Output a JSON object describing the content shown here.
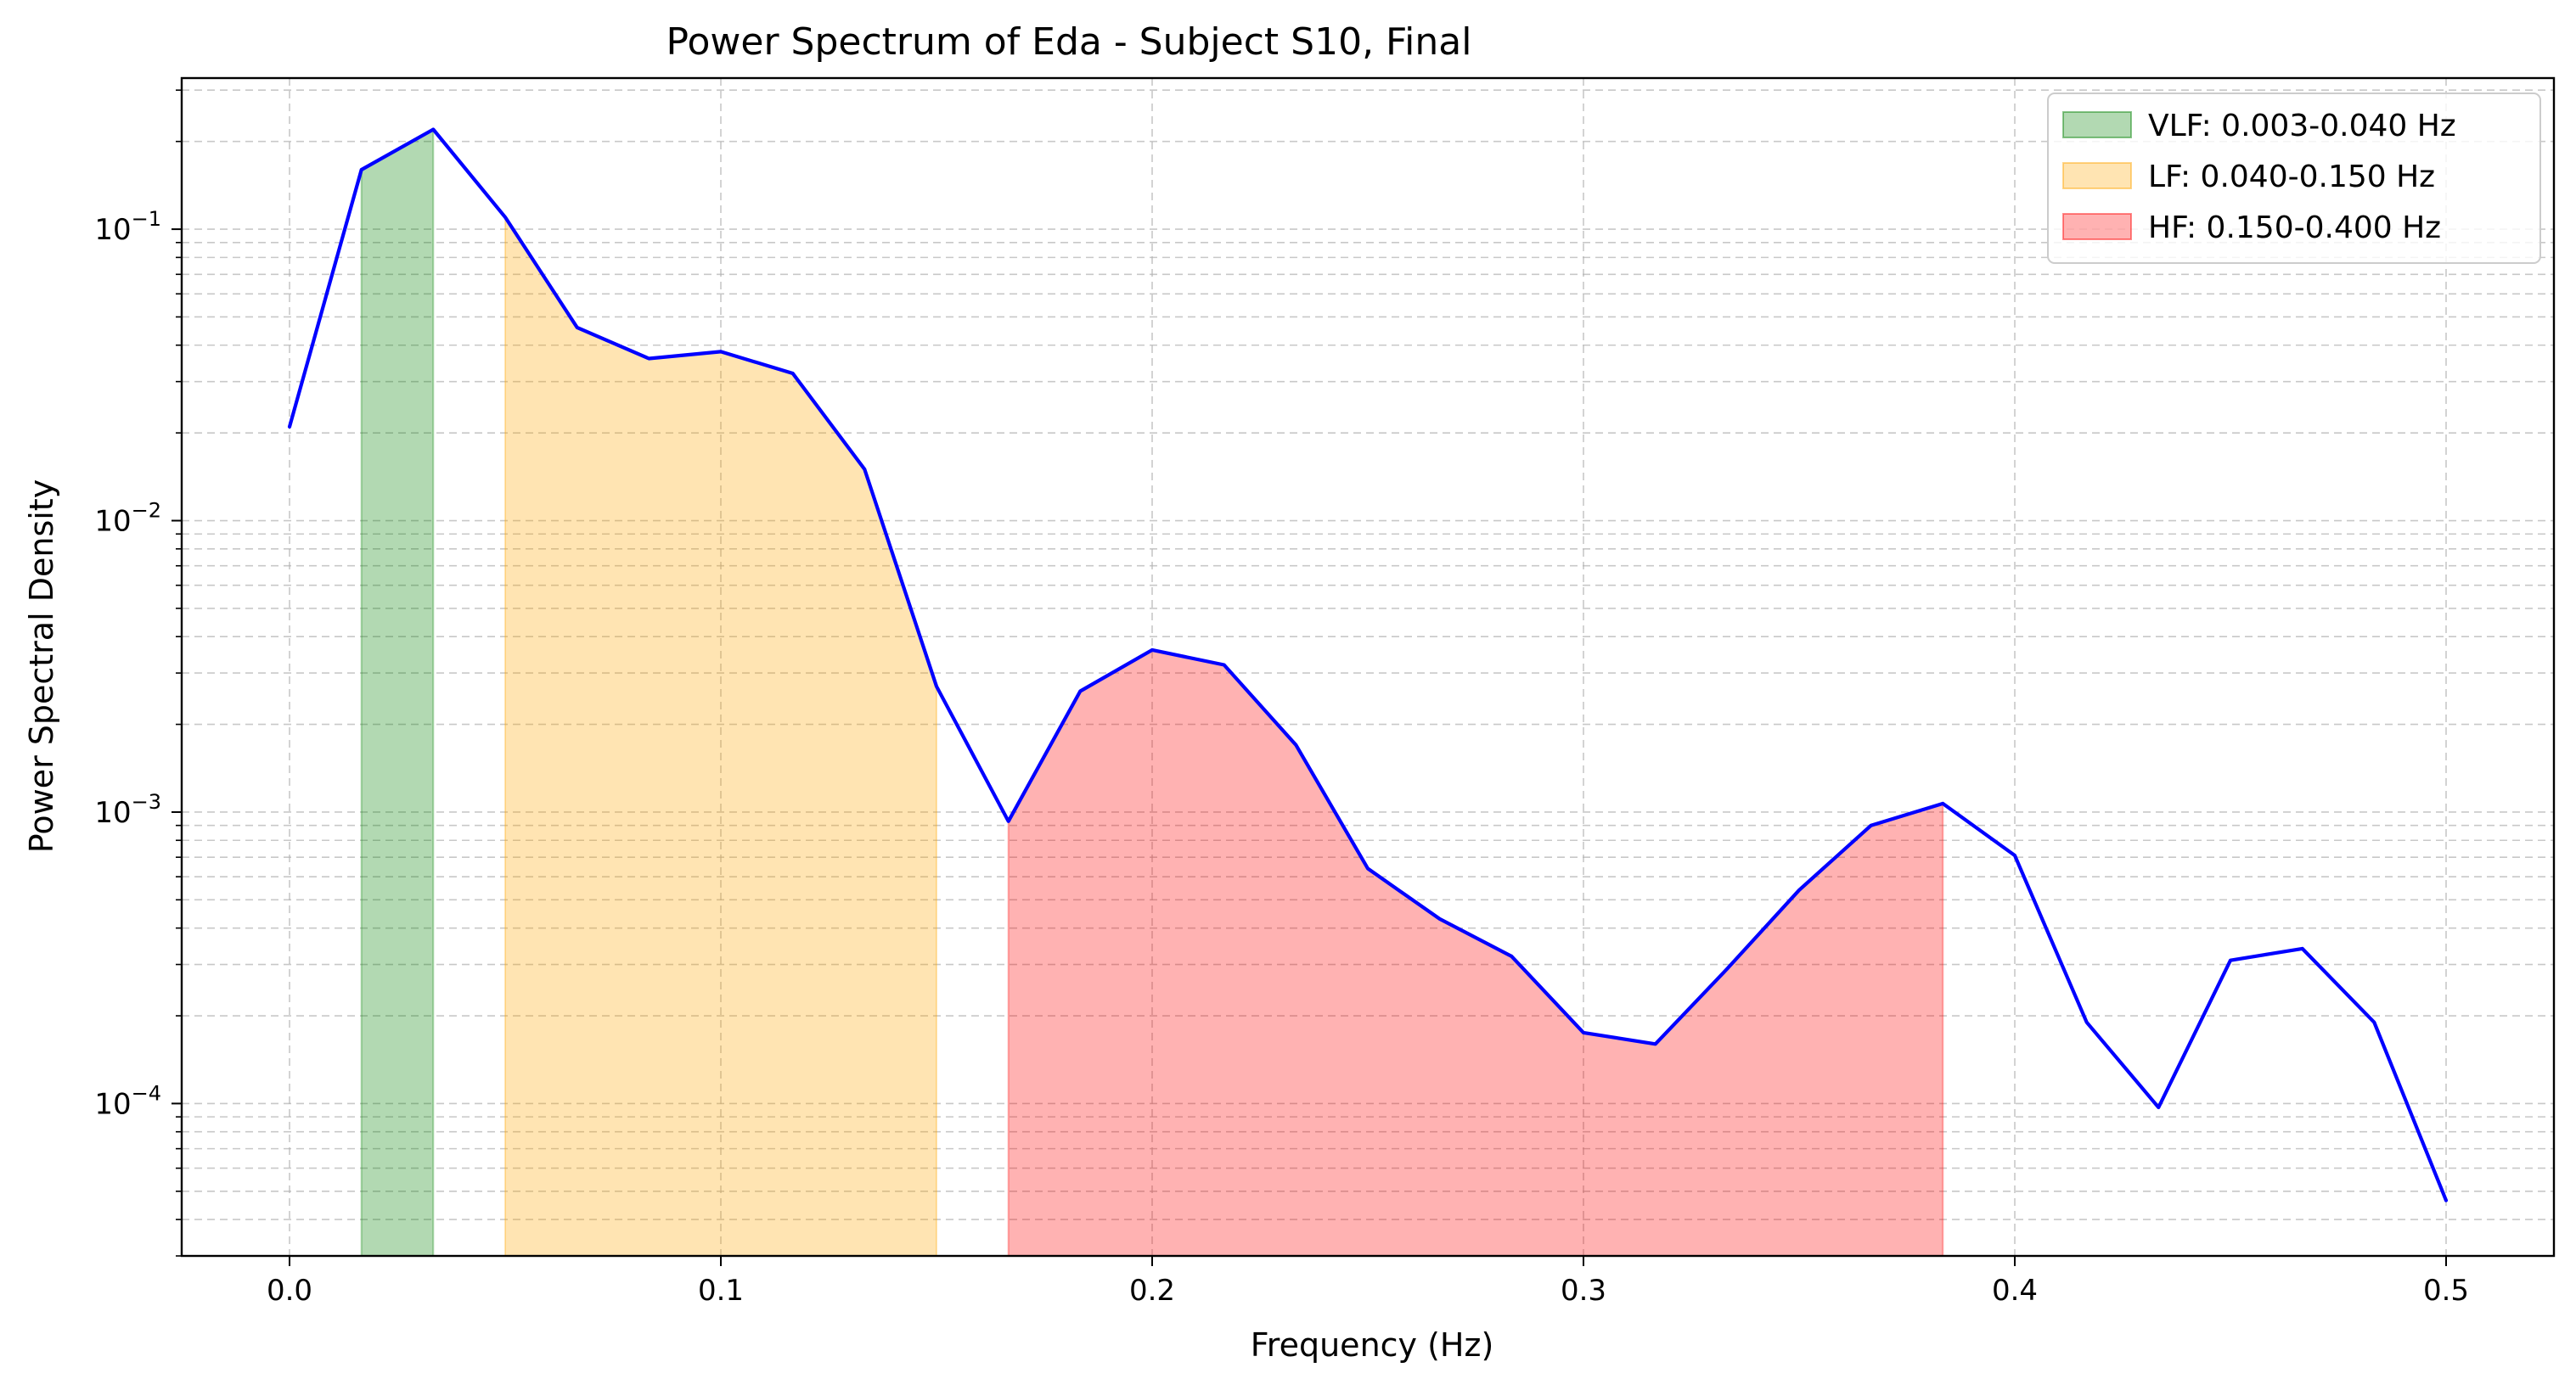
{
  "chart_data": {
    "type": "line",
    "title": "Power Spectrum of Eda - Subject S10, Final",
    "xlabel": "Frequency (Hz)",
    "ylabel": "Power Spectral Density",
    "xlim": [
      -0.025,
      0.525
    ],
    "ylim": [
      3e-05,
      0.33
    ],
    "yscale": "log",
    "grid": true,
    "legend_position": "top-right",
    "x_ticks": [
      0.0,
      0.1,
      0.2,
      0.3,
      0.4,
      0.5
    ],
    "x_tick_labels": [
      "0.0",
      "0.1",
      "0.2",
      "0.3",
      "0.4",
      "0.5"
    ],
    "y_major_ticks": [
      {
        "value": 0.1,
        "base": "10",
        "exp": "−1"
      },
      {
        "value": 0.01,
        "base": "10",
        "exp": "−2"
      },
      {
        "value": 0.001,
        "base": "10",
        "exp": "−3"
      },
      {
        "value": 0.0001,
        "base": "10",
        "exp": "−4"
      }
    ],
    "series": [
      {
        "color": "#0000ff",
        "x": [
          0.0,
          0.01667,
          0.03333,
          0.05,
          0.06667,
          0.08333,
          0.1,
          0.11667,
          0.13333,
          0.15,
          0.16667,
          0.18333,
          0.2,
          0.21667,
          0.23333,
          0.25,
          0.26667,
          0.28333,
          0.3,
          0.31667,
          0.33333,
          0.35,
          0.36667,
          0.38333,
          0.4,
          0.41667,
          0.43333,
          0.45,
          0.46667,
          0.48333,
          0.5
        ],
        "y": [
          0.021,
          0.16,
          0.22,
          0.11,
          0.046,
          0.036,
          0.038,
          0.032,
          0.015,
          0.0027,
          0.00093,
          0.0026,
          0.0036,
          0.0032,
          0.0017,
          0.00064,
          0.00043,
          0.00032,
          0.000175,
          0.00016,
          0.00029,
          0.00054,
          0.0009,
          0.00107,
          0.00071,
          0.00019,
          9.7e-05,
          0.00031,
          0.00034,
          0.00019,
          4.65e-05
        ]
      }
    ],
    "bands": [
      {
        "label": "VLF: 0.003-0.040 Hz",
        "x_start": 0.01667,
        "x_end": 0.03333,
        "color": "#008000",
        "opacity": 0.3
      },
      {
        "label": "LF: 0.040-0.150 Hz",
        "x_start": 0.05,
        "x_end": 0.15,
        "color": "#ffa500",
        "opacity": 0.3
      },
      {
        "label": "HF: 0.150-0.400 Hz",
        "x_start": 0.16667,
        "x_end": 0.38333,
        "color": "#ff0000",
        "opacity": 0.3
      }
    ]
  }
}
